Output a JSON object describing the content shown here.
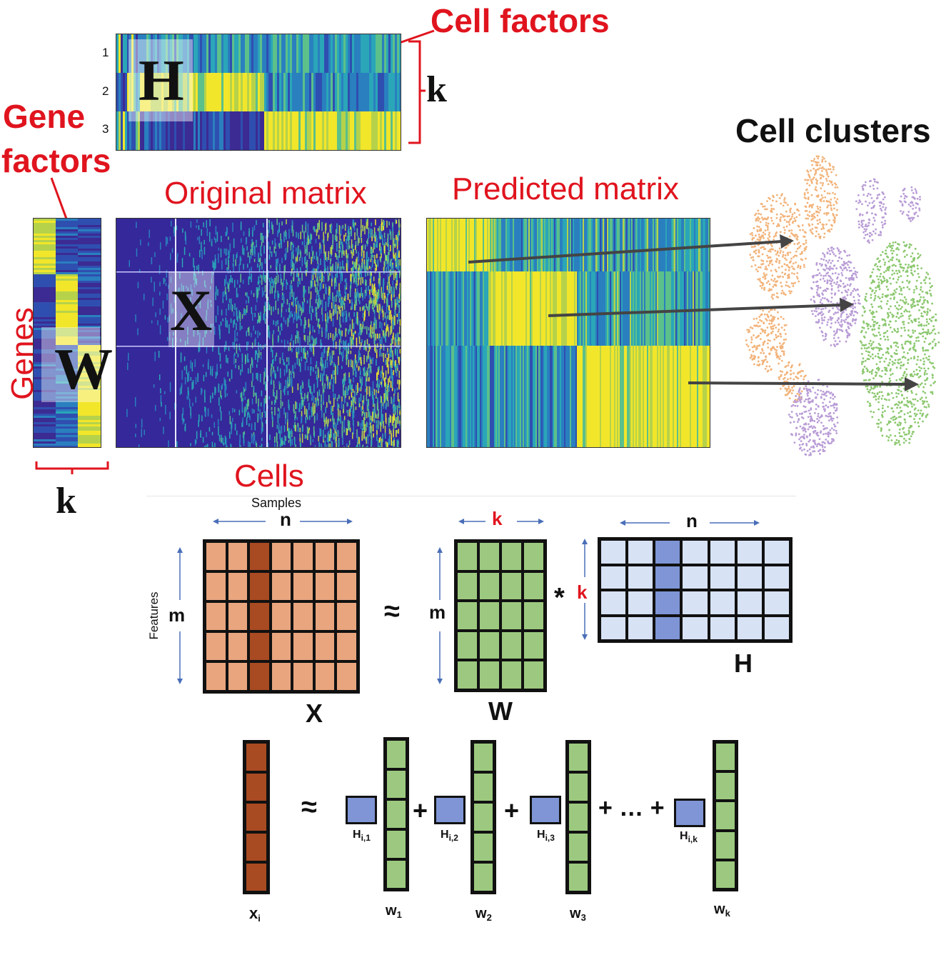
{
  "top": {
    "cell_factors": "Cell factors",
    "gene_factors_line1": "Gene",
    "gene_factors_line2": "factors",
    "cell_clusters": "Cell clusters",
    "original_matrix": "Original matrix",
    "predicted_matrix": "Predicted matrix",
    "genes": "Genes",
    "cells": "Cells",
    "k_right": "k",
    "k_bottom": "k",
    "H_letter": "H",
    "W_letter": "W",
    "X_letter": "X",
    "row_labels": [
      "1",
      "2",
      "3"
    ]
  },
  "bottom": {
    "samples": "Samples",
    "features": "Features",
    "n_x": "n",
    "m_x": "m",
    "k_w": "k",
    "m_w": "m",
    "n_h": "n",
    "k_h": "k",
    "approx": "≈",
    "times": "*",
    "label_x": "X",
    "label_w": "W",
    "label_h": "H",
    "approx2": "≈",
    "plus1": "+",
    "plus2": "+",
    "plus_dots": "+ … +",
    "h1": "H",
    "h1_sub": "i,1",
    "h2": "H",
    "h2_sub": "i,2",
    "h3": "H",
    "h3_sub": "i,3",
    "hk": "H",
    "hk_sub": "i,k",
    "xi": "x",
    "xi_sub": "i",
    "w1": "w",
    "w1_sub": "1",
    "w2": "w",
    "w2_sub": "2",
    "w3": "w",
    "w3_sub": "3",
    "wk": "w",
    "wk_sub": "k"
  },
  "colors": {
    "red": "#e0141e",
    "orange_cell": "#e8a57e",
    "orange_dark": "#a84a22",
    "green_cell": "#9cc97f",
    "blue_cell": "#d7e2f5",
    "blue_dark": "#7f95d6",
    "heat_low": "#3b2b93",
    "heat_mid": "#2aa6b8",
    "heat_high": "#f2e62a",
    "cluster_orange": "#f2b37a",
    "cluster_purple": "#b99cd6",
    "cluster_green": "#8cc86f"
  }
}
